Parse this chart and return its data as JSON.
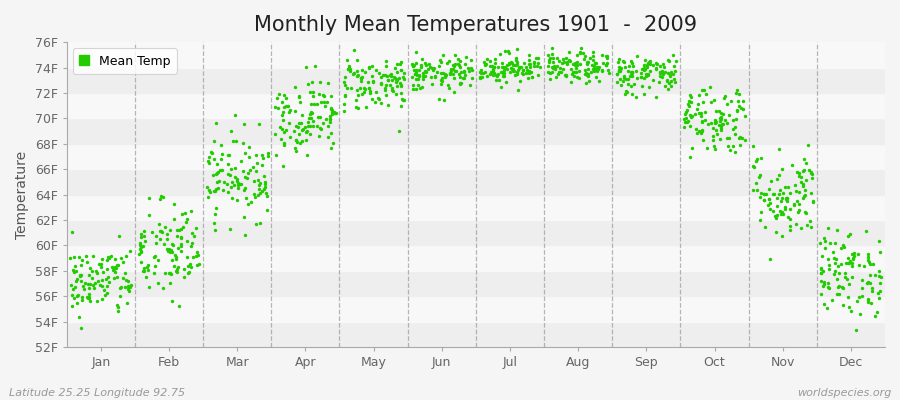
{
  "title": "Monthly Mean Temperatures 1901  -  2009",
  "ylabel": "Temperature",
  "ylim": [
    52,
    76
  ],
  "ytick_labels": [
    "52F",
    "54F",
    "56F",
    "58F",
    "60F",
    "62F",
    "64F",
    "66F",
    "68F",
    "70F",
    "72F",
    "74F",
    "76F"
  ],
  "ytick_values": [
    52,
    54,
    56,
    58,
    60,
    62,
    64,
    66,
    68,
    70,
    72,
    74,
    76
  ],
  "month_labels": [
    "Jan",
    "Feb",
    "Mar",
    "Apr",
    "May",
    "Jun",
    "Jul",
    "Aug",
    "Sep",
    "Oct",
    "Nov",
    "Dec"
  ],
  "month_positions": [
    0.5,
    1.5,
    2.5,
    3.5,
    4.5,
    5.5,
    6.5,
    7.5,
    8.5,
    9.5,
    10.5,
    11.5
  ],
  "dot_color": "#22cc00",
  "dot_size": 6,
  "background_color": "#f5f5f5",
  "h_band_colors": [
    "#eeeeee",
    "#f8f8f8"
  ],
  "dashed_color": "#999999",
  "title_fontsize": 15,
  "axis_fontsize": 10,
  "tick_fontsize": 9,
  "legend_label": "Mean Temp",
  "footer_left": "Latitude 25.25 Longitude 92.75",
  "footer_right": "worldspecies.org",
  "n_years": 109,
  "monthly_means": [
    57.2,
    59.5,
    65.5,
    70.2,
    72.8,
    73.5,
    74.0,
    74.0,
    73.5,
    70.0,
    64.0,
    57.8
  ],
  "monthly_stds": [
    1.4,
    2.0,
    1.7,
    1.5,
    1.1,
    0.7,
    0.6,
    0.6,
    0.8,
    1.4,
    1.8,
    1.7
  ],
  "seed": 42
}
